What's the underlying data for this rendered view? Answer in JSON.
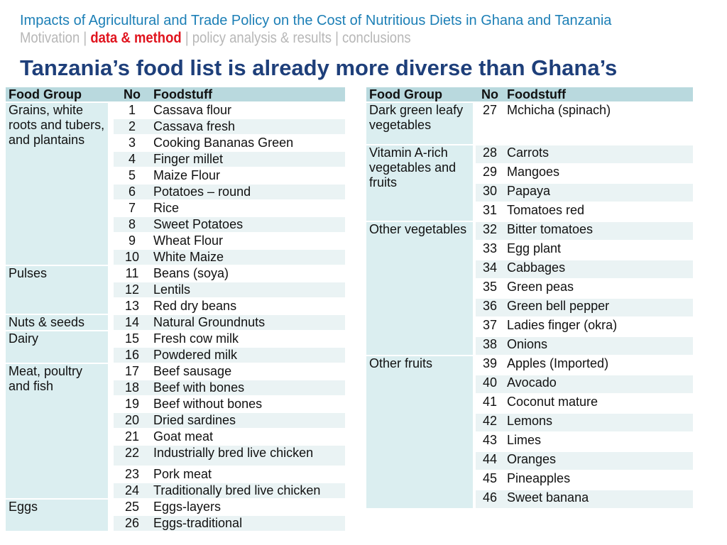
{
  "header": {
    "title": "Impacts of Agricultural and Trade Policy on the Cost of Nutritious Diets in Ghana and Tanzania",
    "nav": [
      "Motivation",
      "data & method",
      "policy analysis & results",
      "conclusions"
    ],
    "separator": "|"
  },
  "heading": "Tanzania’s food list is already more diverse than Ghana’s",
  "columns": {
    "group": "Food Group",
    "no": "No",
    "food": "Foodstuff"
  },
  "left_table": {
    "groups": [
      {
        "name": "Grains, white roots and tubers, and plantains",
        "items": [
          {
            "no": "1",
            "food": "Cassava flour"
          },
          {
            "no": "2",
            "food": "Cassava fresh"
          },
          {
            "no": "3",
            "food": "Cooking Bananas Green"
          },
          {
            "no": "4",
            "food": "Finger millet"
          },
          {
            "no": "5",
            "food": "Maize Flour"
          },
          {
            "no": "6",
            "food": "Potatoes – round"
          },
          {
            "no": "7",
            "food": "Rice"
          },
          {
            "no": "8",
            "food": "Sweet Potatoes"
          },
          {
            "no": "9",
            "food": "Wheat Flour"
          },
          {
            "no": "10",
            "food": "White Maize"
          }
        ]
      },
      {
        "name": "Pulses",
        "items": [
          {
            "no": "11",
            "food": "Beans (soya)"
          },
          {
            "no": "12",
            "food": "Lentils"
          },
          {
            "no": "13",
            "food": "Red dry beans"
          }
        ]
      },
      {
        "name": "Nuts & seeds",
        "items": [
          {
            "no": "14",
            "food": "Natural Groundnuts"
          }
        ]
      },
      {
        "name": "Dairy",
        "items": [
          {
            "no": "15",
            "food": "Fresh cow milk"
          },
          {
            "no": "16",
            "food": "Powdered milk"
          }
        ]
      },
      {
        "name": "Meat, poultry and fish",
        "items": [
          {
            "no": "17",
            "food": "Beef sausage"
          },
          {
            "no": "18",
            "food": "Beef with bones"
          },
          {
            "no": "19",
            "food": "Beef without bones"
          },
          {
            "no": "20",
            "food": "Dried sardines"
          },
          {
            "no": "21",
            "food": "Goat meat"
          },
          {
            "no": "22",
            "food": "Industrially bred live chicken"
          },
          {
            "no": "23",
            "food": "Pork meat"
          },
          {
            "no": "24",
            "food": "Traditionally bred live chicken"
          }
        ]
      },
      {
        "name": "Eggs",
        "items": [
          {
            "no": "25",
            "food": "Eggs-layers"
          },
          {
            "no": "26",
            "food": "Eggs-traditional"
          }
        ]
      }
    ]
  },
  "right_table": {
    "groups": [
      {
        "name": "Dark green leafy vegetables",
        "items": [
          {
            "no": "27",
            "food": "Mchicha (spinach)"
          }
        ]
      },
      {
        "name": "Vitamin A-rich vegetables and fruits",
        "items": [
          {
            "no": "28",
            "food": "Carrots"
          },
          {
            "no": "29",
            "food": "Mangoes"
          },
          {
            "no": "30",
            "food": "Papaya"
          },
          {
            "no": "31",
            "food": "Tomatoes red"
          }
        ]
      },
      {
        "name": "Other vegetables",
        "items": [
          {
            "no": "32",
            "food": "Bitter tomatoes"
          },
          {
            "no": "33",
            "food": "Egg plant"
          },
          {
            "no": "34",
            "food": "Cabbages"
          },
          {
            "no": "35",
            "food": "Green peas"
          },
          {
            "no": "36",
            "food": "Green bell pepper"
          },
          {
            "no": "37",
            "food": "Ladies finger (okra)"
          },
          {
            "no": "38",
            "food": "Onions"
          }
        ]
      },
      {
        "name": "Other fruits",
        "items": [
          {
            "no": "39",
            "food": "Apples (Imported)"
          },
          {
            "no": "40",
            "food": "Avocado"
          },
          {
            "no": "41",
            "food": "Coconut mature"
          },
          {
            "no": "42",
            "food": "Lemons"
          },
          {
            "no": "43",
            "food": "Limes"
          },
          {
            "no": "44",
            "food": "Oranges"
          },
          {
            "no": "45",
            "food": "Pineapples"
          },
          {
            "no": "46",
            "food": "Sweet banana"
          }
        ]
      }
    ]
  },
  "colors": {
    "title": "#1c7fb6",
    "heading": "#1e3f7a",
    "nav_active": "#e0141e",
    "nav_inactive": "#b7b7b7",
    "header_row": "#b9d9de",
    "group_cell": "#dbeef0",
    "row_alt": "#eaf3f4"
  }
}
